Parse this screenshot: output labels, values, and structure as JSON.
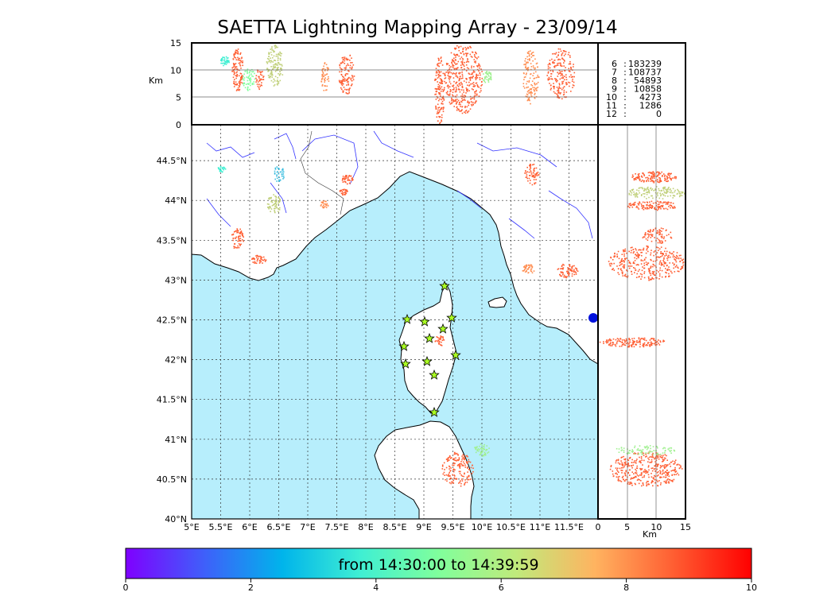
{
  "title": "SAETTA Lightning Mapping Array - 23/09/14",
  "map": {
    "lon_labels": [
      "5°E",
      "5.5°E",
      "6°E",
      "6.5°E",
      "7°E",
      "7.5°E",
      "8°E",
      "8.5°E",
      "9°E",
      "9.5°E",
      "10°E",
      "10.5°E",
      "11°E",
      "11.5°E"
    ],
    "lat_labels": [
      "44.5°N",
      "44°N",
      "43.5°N",
      "43°N",
      "42.5°N",
      "42°N",
      "41.5°N",
      "41°N",
      "40.5°N",
      "40°N"
    ],
    "lon_range": [
      5.0,
      12.0
    ],
    "lat_range": [
      40.0,
      44.95
    ],
    "sea_color": "#b7eefc",
    "land_color": "#ffffff",
    "coast_color": "#000000",
    "river_color": "#3333ff",
    "station_color": "#aaff22",
    "station_icon": "star-icon"
  },
  "top_panel": {
    "ylabel": "Km",
    "yticks": [
      "15",
      "10",
      "5",
      "0"
    ],
    "yrange": [
      0,
      15
    ]
  },
  "right_panel": {
    "xlabel": "Km",
    "xticks": [
      "0",
      "5",
      "10",
      "15"
    ],
    "xrange": [
      0,
      15
    ]
  },
  "counts": [
    {
      "id": "6",
      "value": "183239",
      "color": "#000000"
    },
    {
      "id": "7",
      "value": "108737",
      "color": "#ff0000"
    },
    {
      "id": "8",
      "value": "54893",
      "color": "#000000"
    },
    {
      "id": "9",
      "value": "10858",
      "color": "#000000"
    },
    {
      "id": "10",
      "value": "4273",
      "color": "#000000"
    },
    {
      "id": "11",
      "value": "1286",
      "color": "#000000"
    },
    {
      "id": "12",
      "value": "0",
      "color": "#000000"
    }
  ],
  "colorbar": {
    "label": "from 14:30:00 to 14:39:59",
    "ticks": [
      "0",
      "2",
      "4",
      "6",
      "8",
      "10"
    ],
    "range": [
      0,
      10
    ],
    "colors": [
      "#7f00ff",
      "#3f5ffa",
      "#00b4eb",
      "#3fefd3",
      "#80ff9c",
      "#c0ea7b",
      "#ffb360",
      "#ff5e32",
      "#ff0000"
    ]
  }
}
